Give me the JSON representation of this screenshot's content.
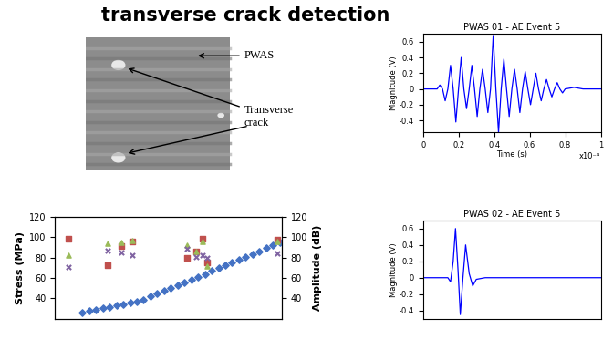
{
  "title": "transverse crack detection",
  "photo": {
    "labels": [
      "PWAS",
      "Transverse\ncrack"
    ]
  },
  "chart_data": [
    {
      "type": "scatter",
      "ylabel": "Stress (MPa)",
      "y2label": "Amplitude (dB)",
      "xlim": [
        0,
        100
      ],
      "xticks": [],
      "tick_labels": "y",
      "ylim": [
        20,
        120
      ],
      "yticks": [
        40,
        60,
        80,
        100,
        120
      ],
      "y2lim": [
        20,
        120
      ],
      "y2ticks": [
        40,
        60,
        80,
        100,
        120
      ],
      "series": [
        {
          "color": "#4472c4",
          "marker": "diamond",
          "x": [
            12,
            15,
            18,
            21,
            24,
            27,
            30,
            33,
            36,
            39,
            42,
            45,
            48,
            51,
            54,
            57,
            60,
            63,
            66,
            69,
            72,
            75,
            78,
            81,
            84,
            87,
            90,
            93,
            96,
            99
          ],
          "values": [
            26,
            27.4,
            28.8,
            30.1,
            31.5,
            32.9,
            34.3,
            35.7,
            37.1,
            38.9,
            41.7,
            44.5,
            47.3,
            50.1,
            52.9,
            55.7,
            58.5,
            61.3,
            64.0,
            66.8,
            69.6,
            72.4,
            75.3,
            78.0,
            80.8,
            83.6,
            86.4,
            89.2,
            92.0,
            94.8
          ]
        },
        {
          "color": "#c0504d",
          "marker": "square",
          "axis": "y2",
          "x": [
            6,
            23,
            29,
            34,
            58,
            62,
            65,
            67,
            98
          ],
          "values": [
            99,
            73,
            91,
            96,
            80,
            86,
            99,
            75,
            98
          ]
        },
        {
          "color": "#9bbb59",
          "marker": "triangle",
          "axis": "y2",
          "x": [
            6,
            23,
            29,
            34,
            58,
            62,
            65,
            67,
            98
          ],
          "values": [
            82,
            94,
            95,
            97,
            92,
            86,
            96,
            72,
            96
          ]
        },
        {
          "color": "#8064a2",
          "marker": "x",
          "axis": "y2",
          "x": [
            6,
            23,
            29,
            34,
            58,
            62,
            65,
            67,
            98
          ],
          "values": [
            71,
            87,
            85,
            82,
            89,
            81,
            82,
            80,
            84
          ]
        }
      ]
    },
    {
      "type": "line",
      "title": "PWAS 01 - AE Event 5",
      "xlabel": "Time (s)",
      "ylabel": "Magnitude (V)",
      "annotation": "x10⁻⁴",
      "color": "#0000ff",
      "xlim": [
        0,
        1
      ],
      "xticks": [
        0,
        0.2,
        0.4,
        0.6,
        0.8,
        1
      ],
      "ylim": [
        -0.55,
        0.7
      ],
      "yticks": [
        -0.4,
        -0.2,
        0,
        0.2,
        0.4,
        0.6
      ],
      "x": [
        0,
        0.08,
        0.095,
        0.11,
        0.125,
        0.14,
        0.155,
        0.17,
        0.185,
        0.2,
        0.215,
        0.23,
        0.245,
        0.26,
        0.275,
        0.29,
        0.305,
        0.32,
        0.335,
        0.35,
        0.365,
        0.38,
        0.395,
        0.41,
        0.425,
        0.44,
        0.455,
        0.47,
        0.485,
        0.5,
        0.515,
        0.53,
        0.545,
        0.56,
        0.575,
        0.59,
        0.605,
        0.62,
        0.635,
        0.65,
        0.665,
        0.68,
        0.695,
        0.71,
        0.725,
        0.74,
        0.755,
        0.77,
        0.785,
        0.8,
        0.85,
        0.9,
        1.0
      ],
      "values": [
        0,
        0,
        0.05,
        0,
        -0.15,
        0,
        0.3,
        0,
        -0.42,
        0,
        0.4,
        0,
        -0.25,
        0,
        0.3,
        0,
        -0.35,
        0,
        0.25,
        0,
        -0.3,
        0,
        0.68,
        0,
        -0.55,
        0,
        0.38,
        0,
        -0.35,
        0,
        0.25,
        0,
        -0.3,
        0,
        0.22,
        0,
        -0.2,
        0,
        0.2,
        0,
        -0.15,
        0,
        0.12,
        0,
        -0.1,
        0,
        0.08,
        0,
        -0.05,
        0,
        0.02,
        0,
        0
      ]
    },
    {
      "type": "line",
      "title": "PWAS 02 - AE Event 5",
      "ylabel": "Magnitude (V)",
      "color": "#0000ff",
      "tick_labels": "y",
      "xlim": [
        0,
        1
      ],
      "xticks": [],
      "ylim": [
        -0.5,
        0.7
      ],
      "yticks": [
        -0.4,
        -0.2,
        0,
        0.2,
        0.4,
        0.6
      ],
      "x": [
        0,
        0.14,
        0.155,
        0.17,
        0.183,
        0.197,
        0.21,
        0.225,
        0.24,
        0.26,
        0.28,
        0.3,
        0.35,
        1.0
      ],
      "values": [
        0,
        0,
        -0.05,
        0.2,
        0.6,
        0.1,
        -0.45,
        0.0,
        0.4,
        0.05,
        -0.1,
        -0.02,
        0,
        0
      ]
    }
  ]
}
